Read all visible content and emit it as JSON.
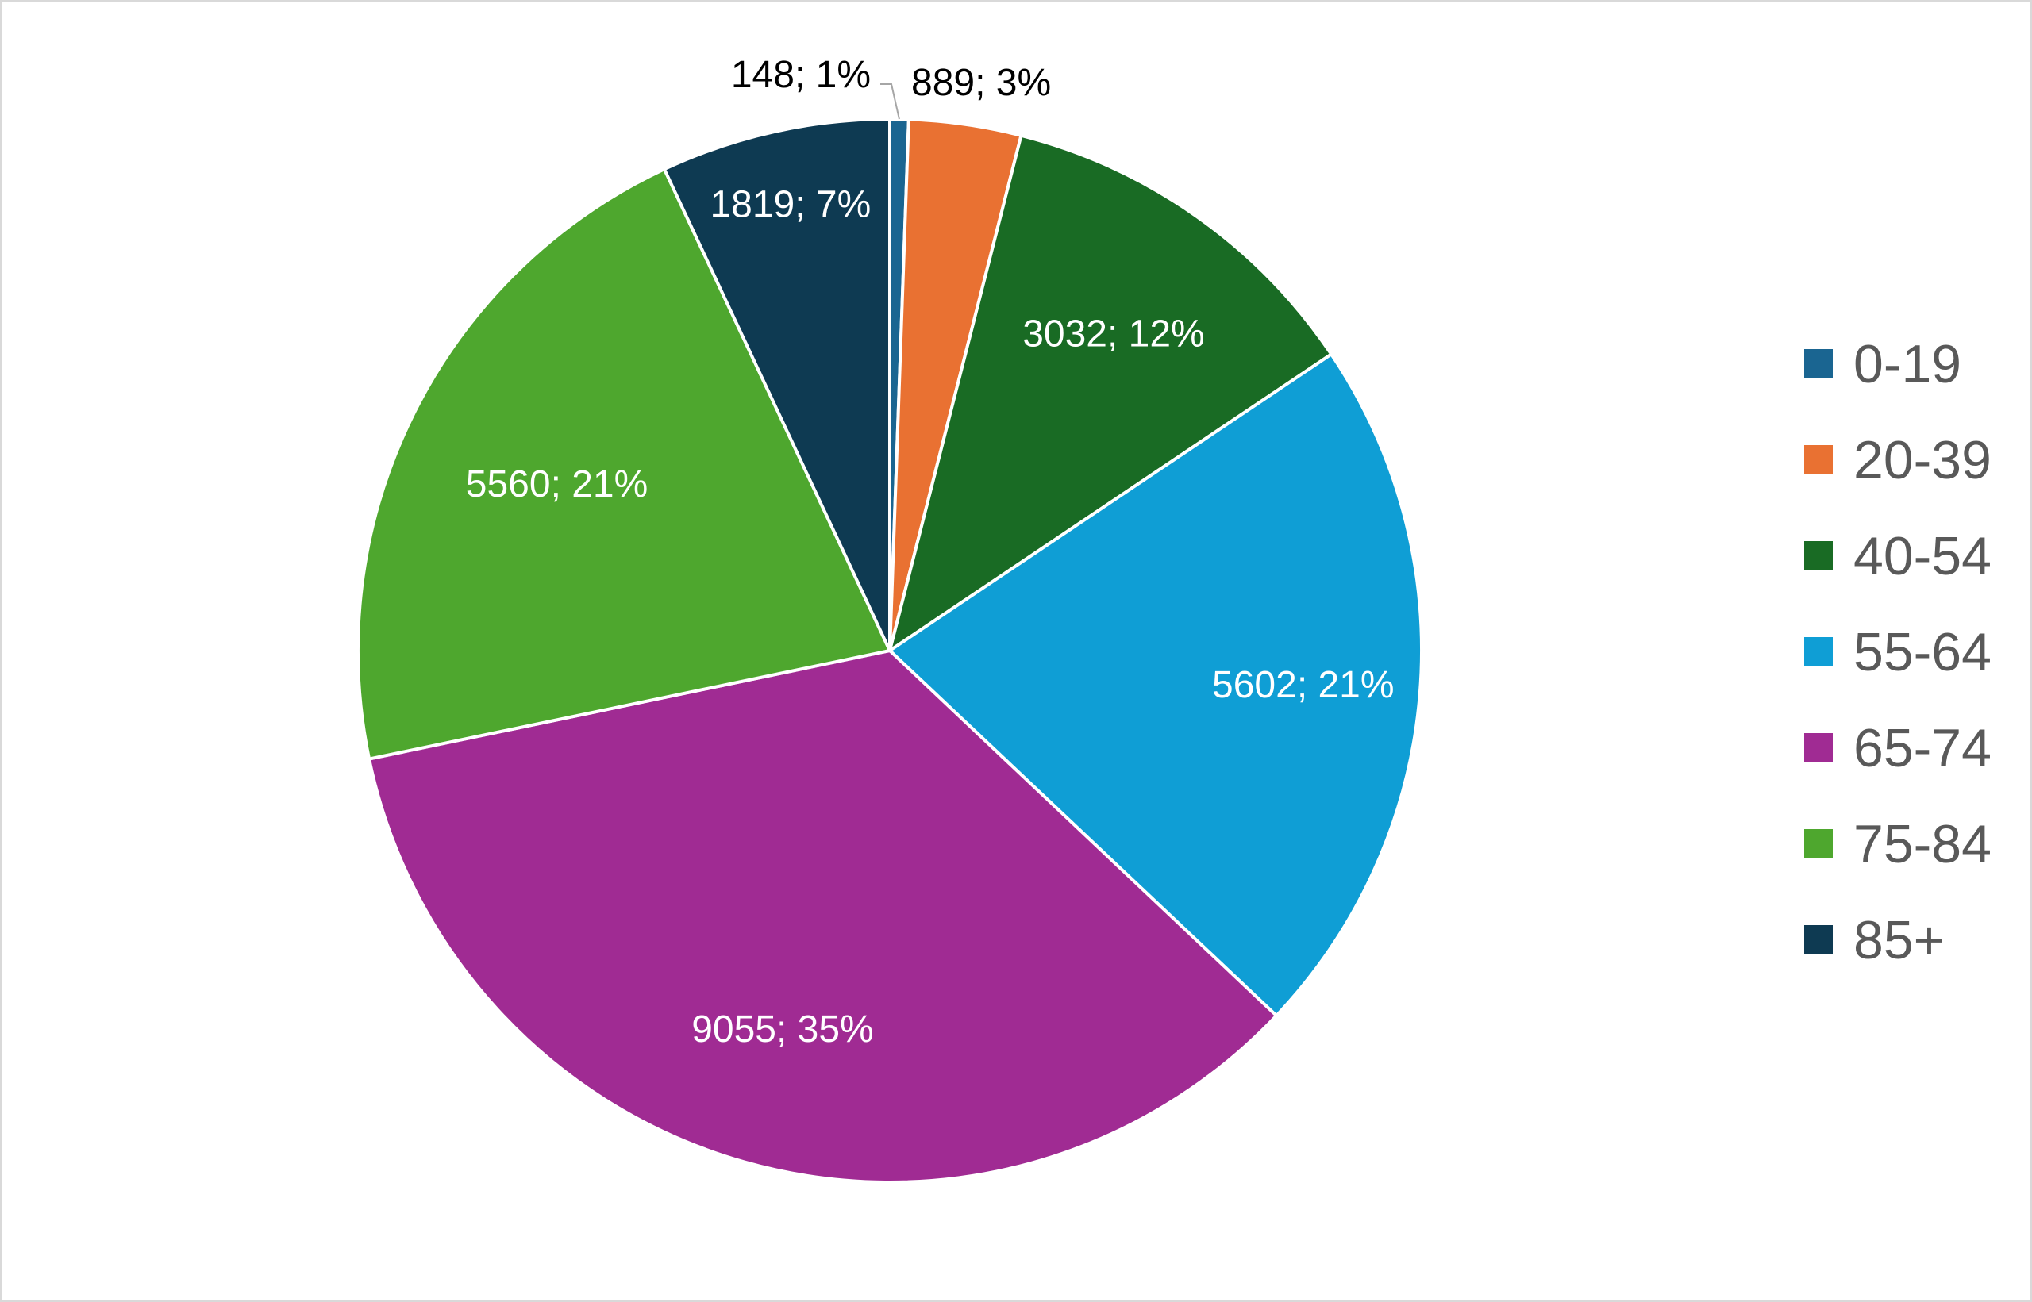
{
  "chart_data": {
    "type": "pie",
    "categories": [
      "0-19",
      "20-39",
      "40-54",
      "55-64",
      "65-74",
      "75-84",
      "85+"
    ],
    "values": [
      148,
      889,
      3032,
      5602,
      9055,
      5560,
      1819
    ],
    "percent_labels": [
      "1%",
      "3%",
      "12%",
      "21%",
      "35%",
      "21%",
      "7%"
    ],
    "data_labels": [
      "148; 1%",
      "889; 3%",
      "3032; 12%",
      "5602; 21%",
      "9055; 35%",
      "5560; 21%",
      "1819; 7%"
    ],
    "colors": [
      "#1a6591",
      "#e97132",
      "#196b24",
      "#0f9ed5",
      "#a02b93",
      "#4ea72e",
      "#0e3a52"
    ],
    "label_text_colors": [
      "#000000",
      "#000000",
      "#ffffff",
      "#ffffff",
      "#ffffff",
      "#ffffff",
      "#ffffff"
    ],
    "start_angle": "12 o'clock",
    "direction": "clockwise",
    "slice_border": "#ffffff",
    "legend": {
      "position": "right",
      "items": [
        "0-19",
        "20-39",
        "40-54",
        "55-64",
        "65-74",
        "75-84",
        "85+"
      ]
    }
  }
}
